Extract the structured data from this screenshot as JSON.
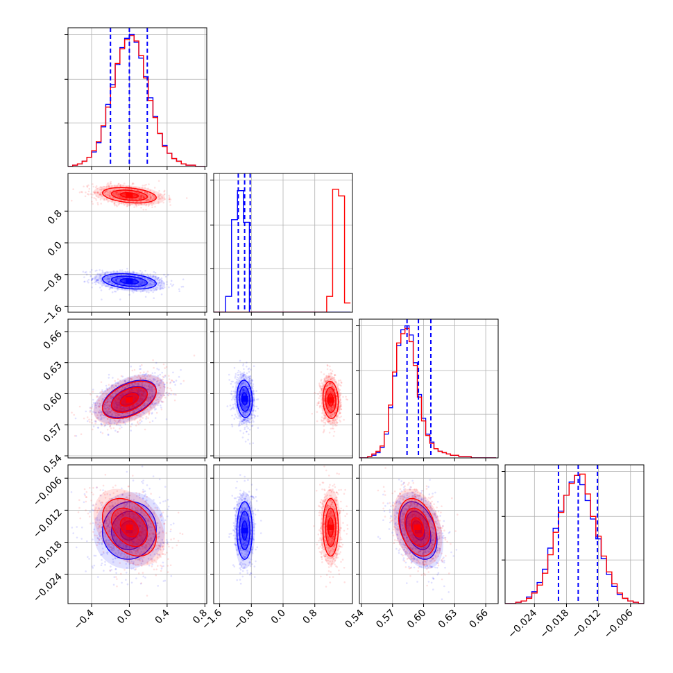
{
  "chart_data": {
    "type": "corner",
    "parameters": 4,
    "grid": true,
    "colors": {
      "blue": "#0000ff",
      "red": "#ff0000",
      "grid": "#b0b0b0"
    },
    "param_ranges": [
      [
        -0.65,
        0.82
      ],
      [
        -1.75,
        1.75
      ],
      [
        0.538,
        0.672
      ],
      [
        -0.0295,
        -0.0035
      ]
    ],
    "ticks": [
      {
        "values": [
          -0.4,
          0.0,
          0.4,
          0.8
        ],
        "labels": [
          "−0.4",
          "0.0",
          "0.4",
          "0.8"
        ]
      },
      {
        "values": [
          -1.6,
          -0.8,
          0.0,
          0.8
        ],
        "labels": [
          "−1.6",
          "−0.8",
          "0.0",
          "0.8"
        ]
      },
      {
        "values": [
          0.54,
          0.57,
          0.6,
          0.63,
          0.66
        ],
        "labels": [
          "0.54",
          "0.57",
          "0.60",
          "0.63",
          "0.66"
        ]
      },
      {
        "values": [
          -0.024,
          -0.018,
          -0.012,
          -0.006
        ],
        "labels": [
          "−0.024",
          "−0.018",
          "−0.012",
          "−0.006"
        ]
      }
    ],
    "histograms": [
      {
        "param": 0,
        "bins": [
          -0.65,
          -0.6,
          -0.55,
          -0.5,
          -0.45,
          -0.4,
          -0.35,
          -0.3,
          -0.25,
          -0.2,
          -0.15,
          -0.1,
          -0.05,
          0.0,
          0.05,
          0.1,
          0.15,
          0.2,
          0.25,
          0.3,
          0.35,
          0.4,
          0.45,
          0.5,
          0.55,
          0.6,
          0.65,
          0.7,
          0.75,
          0.8
        ],
        "series": [
          {
            "name": "blue",
            "counts": [
              0.0,
              0.01,
              0.02,
              0.04,
              0.07,
              0.11,
              0.18,
              0.3,
              0.47,
              0.62,
              0.77,
              0.9,
              0.97,
              1.0,
              0.94,
              0.82,
              0.68,
              0.52,
              0.38,
              0.25,
              0.16,
              0.1,
              0.06,
              0.04,
              0.02,
              0.01,
              0.01,
              0.0,
              0.0
            ]
          },
          {
            "name": "red",
            "counts": [
              0.0,
              0.01,
              0.02,
              0.04,
              0.07,
              0.12,
              0.19,
              0.31,
              0.45,
              0.6,
              0.78,
              0.89,
              0.96,
              0.99,
              0.95,
              0.84,
              0.67,
              0.5,
              0.37,
              0.25,
              0.15,
              0.1,
              0.06,
              0.04,
              0.02,
              0.01,
              0.01,
              0.0,
              0.0
            ]
          }
        ],
        "quantiles": [
          -0.2,
          0.0,
          0.19
        ]
      },
      {
        "param": 1,
        "bins": [
          -1.75,
          -1.6,
          -1.45,
          -1.3,
          -1.15,
          -1.0,
          -0.85,
          -0.7,
          -0.55,
          -0.4,
          -0.25,
          -0.1,
          0.05,
          0.2,
          0.35,
          0.5,
          0.65,
          0.8,
          0.95,
          1.1,
          1.25,
          1.4,
          1.55,
          1.7
        ],
        "series": [
          {
            "name": "blue",
            "counts": [
              0.0,
              0.0,
              0.12,
              0.7,
              0.92,
              0.68,
              0.0,
              0.0,
              0.0,
              0.0,
              0.0,
              0.0,
              0.0,
              0.0,
              0.0,
              0.0,
              0.0,
              0.0,
              0.0,
              0.0,
              0.0,
              0.0,
              0.0
            ]
          },
          {
            "name": "red",
            "counts": [
              0.0,
              0.0,
              0.0,
              0.0,
              0.0,
              0.0,
              0.0,
              0.0,
              0.0,
              0.0,
              0.0,
              0.0,
              0.0,
              0.0,
              0.0,
              0.0,
              0.0,
              0.0,
              0.0,
              0.12,
              0.93,
              0.88,
              0.07
            ]
          }
        ],
        "quantiles": [
          -1.13,
          -0.97,
          -0.83
        ]
      },
      {
        "param": 2,
        "bins": [
          0.538,
          0.542,
          0.546,
          0.55,
          0.554,
          0.558,
          0.562,
          0.566,
          0.57,
          0.574,
          0.578,
          0.582,
          0.586,
          0.59,
          0.594,
          0.598,
          0.602,
          0.606,
          0.61,
          0.614,
          0.618,
          0.622,
          0.626,
          0.63,
          0.634,
          0.638,
          0.642,
          0.646,
          0.65,
          0.654,
          0.658,
          0.662,
          0.666,
          0.67
        ],
        "series": [
          {
            "name": "blue",
            "counts": [
              0.0,
              0.0,
              0.01,
              0.02,
              0.04,
              0.08,
              0.18,
              0.38,
              0.62,
              0.85,
              0.97,
              1.0,
              0.93,
              0.72,
              0.48,
              0.3,
              0.18,
              0.12,
              0.07,
              0.05,
              0.04,
              0.03,
              0.02,
              0.02,
              0.01,
              0.01,
              0.01,
              0.0,
              0.0,
              0.0,
              0.0,
              0.0,
              0.0
            ]
          },
          {
            "name": "red",
            "counts": [
              0.0,
              0.0,
              0.01,
              0.03,
              0.05,
              0.09,
              0.2,
              0.4,
              0.65,
              0.87,
              0.94,
              0.98,
              0.88,
              0.7,
              0.46,
              0.28,
              0.17,
              0.11,
              0.07,
              0.05,
              0.04,
              0.03,
              0.02,
              0.02,
              0.01,
              0.01,
              0.01,
              0.0,
              0.0,
              0.0,
              0.0,
              0.0,
              0.0
            ]
          }
        ],
        "quantiles": [
          0.584,
          0.595,
          0.607
        ]
      },
      {
        "param": 3,
        "bins": [
          -0.0295,
          -0.0285,
          -0.0275,
          -0.0265,
          -0.0255,
          -0.0245,
          -0.0235,
          -0.0225,
          -0.0215,
          -0.0205,
          -0.0195,
          -0.0185,
          -0.0175,
          -0.0165,
          -0.0155,
          -0.0145,
          -0.0135,
          -0.0125,
          -0.0115,
          -0.0105,
          -0.0095,
          -0.0085,
          -0.0075,
          -0.0065,
          -0.0055,
          -0.0045,
          -0.0035
        ],
        "series": [
          {
            "name": "blue",
            "counts": [
              0.0,
              0.0,
              0.01,
              0.02,
              0.05,
              0.09,
              0.16,
              0.26,
              0.42,
              0.57,
              0.7,
              0.82,
              0.92,
              0.97,
              0.9,
              0.78,
              0.64,
              0.49,
              0.34,
              0.22,
              0.13,
              0.07,
              0.04,
              0.02,
              0.01,
              0.0
            ]
          },
          {
            "name": "red",
            "counts": [
              0.0,
              0.0,
              0.01,
              0.02,
              0.04,
              0.08,
              0.14,
              0.23,
              0.37,
              0.54,
              0.69,
              0.82,
              0.91,
              0.97,
              0.98,
              0.83,
              0.66,
              0.51,
              0.36,
              0.24,
              0.15,
              0.08,
              0.04,
              0.02,
              0.01,
              0.0
            ]
          }
        ],
        "quantiles": [
          -0.0195,
          -0.0158,
          -0.0122
        ]
      }
    ],
    "posteriors": [
      {
        "name": "blue",
        "mean": [
          0.0,
          -0.97,
          0.595,
          -0.0158
        ],
        "std": [
          0.19,
          0.13,
          0.012,
          0.0036
        ],
        "corr": [
          [
            1,
            -0.3,
            0.45,
            0.05
          ],
          [
            -0.3,
            1,
            -0.1,
            0.0
          ],
          [
            0.45,
            -0.1,
            1,
            -0.35
          ],
          [
            0.05,
            0.0,
            -0.35,
            1
          ]
        ]
      },
      {
        "name": "red",
        "mean": [
          0.0,
          1.2,
          0.594,
          -0.0152
        ],
        "std": [
          0.19,
          0.13,
          0.012,
          0.0036
        ],
        "corr": [
          [
            1,
            -0.3,
            0.45,
            -0.35
          ],
          [
            -0.3,
            1,
            -0.1,
            0.0
          ],
          [
            0.45,
            -0.1,
            1,
            -0.3
          ],
          [
            -0.35,
            0.0,
            -0.3,
            1
          ]
        ]
      }
    ],
    "contour_levels_sigma": [
      0.5,
      1.0,
      1.5,
      2.0
    ]
  }
}
